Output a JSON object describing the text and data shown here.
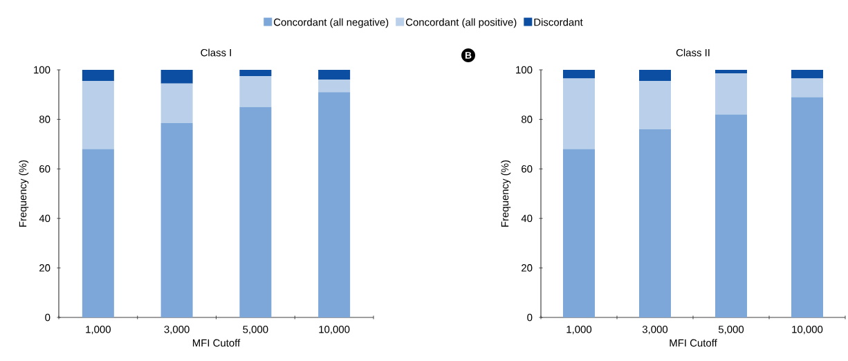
{
  "chart_data": [
    {
      "type": "bar",
      "title": "Class I",
      "xlabel": "MFI Cutoff",
      "ylabel": "Frequency (%)",
      "stacked": true,
      "legend": "top",
      "categories": [
        "1,000",
        "3,000",
        "5,000",
        "10,000"
      ],
      "series": [
        {
          "name": "Concordant (all negative)",
          "color": "#7da7d8",
          "values": [
            68,
            78.5,
            85,
            91
          ]
        },
        {
          "name": "Concordant (all positive)",
          "color": "#bacfe9",
          "values": [
            27.5,
            16,
            12.5,
            5
          ]
        },
        {
          "name": "Discordant",
          "color": "#0b4ea2",
          "values": [
            4.5,
            5.5,
            2.5,
            4
          ]
        }
      ],
      "ylim": [
        0,
        100
      ],
      "yticks": [
        0,
        20,
        40,
        60,
        80,
        100
      ]
    },
    {
      "type": "bar",
      "title": "Class II",
      "xlabel": "MFI Cutoff",
      "ylabel": "Frequency (%)",
      "stacked": true,
      "annotations": [
        "B"
      ],
      "categories": [
        "1,000",
        "3,000",
        "5,000",
        "10,000"
      ],
      "series": [
        {
          "color": "#7da7d8",
          "values": [
            68,
            76,
            82,
            89
          ]
        },
        {
          "color": "#bacfe9",
          "values": [
            28.5,
            19.5,
            16.5,
            7.5
          ]
        },
        {
          "color": "#0b4ea2",
          "values": [
            3.5,
            4.5,
            1.5,
            3.5
          ]
        }
      ],
      "ylim": [
        0,
        100
      ],
      "yticks": [
        0,
        20,
        40,
        60,
        80,
        100
      ]
    }
  ]
}
